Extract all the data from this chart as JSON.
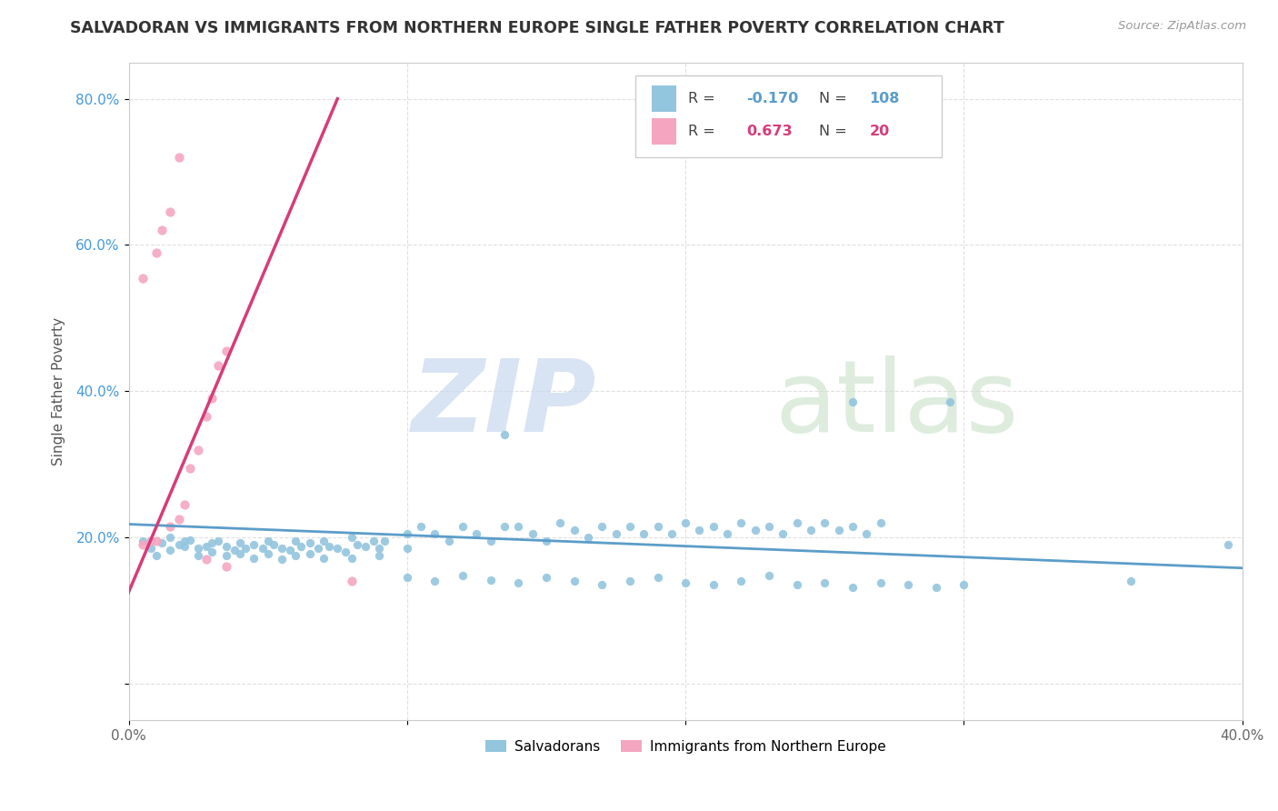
{
  "title": "SALVADORAN VS IMMIGRANTS FROM NORTHERN EUROPE SINGLE FATHER POVERTY CORRELATION CHART",
  "source": "Source: ZipAtlas.com",
  "ylabel": "Single Father Poverty",
  "xlim": [
    0.0,
    0.4
  ],
  "ylim": [
    -0.05,
    0.85
  ],
  "color_blue": "#92c5de",
  "color_pink": "#f4a6c0",
  "trendline_blue": "#5b9dc9",
  "trendline_pink": "#d63c7a",
  "blue_trend_x": [
    0.0,
    0.4
  ],
  "blue_trend_y": [
    0.218,
    0.158
  ],
  "pink_trend_x": [
    -0.005,
    0.075
  ],
  "pink_trend_y": [
    0.08,
    0.8
  ],
  "blue_scatter": [
    [
      0.005,
      0.195
    ],
    [
      0.008,
      0.185
    ],
    [
      0.01,
      0.175
    ],
    [
      0.012,
      0.192
    ],
    [
      0.015,
      0.2
    ],
    [
      0.015,
      0.183
    ],
    [
      0.018,
      0.19
    ],
    [
      0.02,
      0.195
    ],
    [
      0.02,
      0.188
    ],
    [
      0.022,
      0.196
    ],
    [
      0.025,
      0.185
    ],
    [
      0.025,
      0.175
    ],
    [
      0.028,
      0.188
    ],
    [
      0.03,
      0.192
    ],
    [
      0.03,
      0.18
    ],
    [
      0.032,
      0.195
    ],
    [
      0.035,
      0.188
    ],
    [
      0.035,
      0.175
    ],
    [
      0.038,
      0.183
    ],
    [
      0.04,
      0.192
    ],
    [
      0.04,
      0.178
    ],
    [
      0.042,
      0.185
    ],
    [
      0.045,
      0.19
    ],
    [
      0.045,
      0.172
    ],
    [
      0.048,
      0.185
    ],
    [
      0.05,
      0.195
    ],
    [
      0.05,
      0.178
    ],
    [
      0.052,
      0.19
    ],
    [
      0.055,
      0.185
    ],
    [
      0.055,
      0.17
    ],
    [
      0.058,
      0.182
    ],
    [
      0.06,
      0.195
    ],
    [
      0.06,
      0.175
    ],
    [
      0.062,
      0.188
    ],
    [
      0.065,
      0.192
    ],
    [
      0.065,
      0.178
    ],
    [
      0.068,
      0.185
    ],
    [
      0.07,
      0.195
    ],
    [
      0.07,
      0.172
    ],
    [
      0.072,
      0.188
    ],
    [
      0.075,
      0.185
    ],
    [
      0.078,
      0.18
    ],
    [
      0.08,
      0.2
    ],
    [
      0.08,
      0.172
    ],
    [
      0.082,
      0.19
    ],
    [
      0.085,
      0.188
    ],
    [
      0.088,
      0.195
    ],
    [
      0.09,
      0.185
    ],
    [
      0.09,
      0.175
    ],
    [
      0.092,
      0.195
    ],
    [
      0.1,
      0.205
    ],
    [
      0.1,
      0.185
    ],
    [
      0.105,
      0.215
    ],
    [
      0.11,
      0.205
    ],
    [
      0.115,
      0.195
    ],
    [
      0.12,
      0.215
    ],
    [
      0.125,
      0.205
    ],
    [
      0.13,
      0.195
    ],
    [
      0.135,
      0.215
    ],
    [
      0.14,
      0.215
    ],
    [
      0.145,
      0.205
    ],
    [
      0.15,
      0.195
    ],
    [
      0.155,
      0.22
    ],
    [
      0.16,
      0.21
    ],
    [
      0.165,
      0.2
    ],
    [
      0.17,
      0.215
    ],
    [
      0.175,
      0.205
    ],
    [
      0.18,
      0.215
    ],
    [
      0.185,
      0.205
    ],
    [
      0.19,
      0.215
    ],
    [
      0.195,
      0.205
    ],
    [
      0.2,
      0.22
    ],
    [
      0.205,
      0.21
    ],
    [
      0.21,
      0.215
    ],
    [
      0.215,
      0.205
    ],
    [
      0.22,
      0.22
    ],
    [
      0.225,
      0.21
    ],
    [
      0.23,
      0.215
    ],
    [
      0.235,
      0.205
    ],
    [
      0.24,
      0.22
    ],
    [
      0.245,
      0.21
    ],
    [
      0.25,
      0.22
    ],
    [
      0.255,
      0.21
    ],
    [
      0.26,
      0.215
    ],
    [
      0.265,
      0.205
    ],
    [
      0.27,
      0.22
    ],
    [
      0.135,
      0.34
    ],
    [
      0.26,
      0.385
    ],
    [
      0.295,
      0.385
    ],
    [
      0.1,
      0.145
    ],
    [
      0.11,
      0.14
    ],
    [
      0.12,
      0.148
    ],
    [
      0.13,
      0.142
    ],
    [
      0.14,
      0.138
    ],
    [
      0.15,
      0.145
    ],
    [
      0.16,
      0.14
    ],
    [
      0.17,
      0.135
    ],
    [
      0.18,
      0.14
    ],
    [
      0.19,
      0.145
    ],
    [
      0.2,
      0.138
    ],
    [
      0.21,
      0.135
    ],
    [
      0.22,
      0.14
    ],
    [
      0.23,
      0.148
    ],
    [
      0.24,
      0.135
    ],
    [
      0.25,
      0.138
    ],
    [
      0.26,
      0.132
    ],
    [
      0.27,
      0.138
    ],
    [
      0.28,
      0.135
    ],
    [
      0.29,
      0.132
    ],
    [
      0.3,
      0.135
    ],
    [
      0.36,
      0.14
    ],
    [
      0.395,
      0.19
    ]
  ],
  "pink_scatter": [
    [
      0.005,
      0.19
    ],
    [
      0.008,
      0.195
    ],
    [
      0.01,
      0.195
    ],
    [
      0.015,
      0.215
    ],
    [
      0.018,
      0.225
    ],
    [
      0.02,
      0.245
    ],
    [
      0.022,
      0.295
    ],
    [
      0.025,
      0.32
    ],
    [
      0.028,
      0.365
    ],
    [
      0.03,
      0.39
    ],
    [
      0.032,
      0.435
    ],
    [
      0.035,
      0.455
    ],
    [
      0.005,
      0.555
    ],
    [
      0.01,
      0.59
    ],
    [
      0.012,
      0.62
    ],
    [
      0.015,
      0.645
    ],
    [
      0.018,
      0.72
    ],
    [
      0.028,
      0.17
    ],
    [
      0.035,
      0.16
    ],
    [
      0.08,
      0.14
    ]
  ]
}
